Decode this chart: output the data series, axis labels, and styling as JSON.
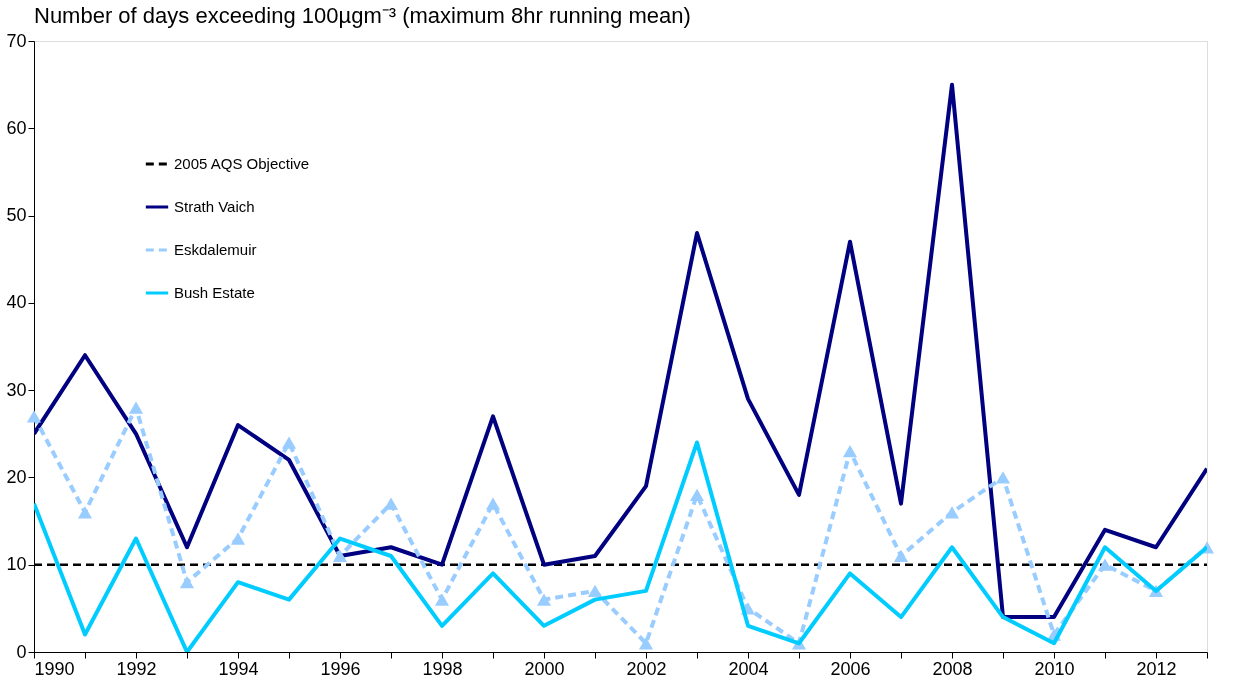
{
  "chart_data": {
    "type": "line",
    "title": "Number of days exceeding 100µgm⁻³ (maximum 8hr running mean)",
    "x": [
      1990,
      1991,
      1992,
      1993,
      1994,
      1995,
      1996,
      1997,
      1998,
      1999,
      2000,
      2001,
      2002,
      2003,
      2004,
      2005,
      2006,
      2007,
      2008,
      2009,
      2010,
      2011,
      2012,
      2013
    ],
    "series": [
      {
        "name": "Strath Vaich",
        "color": "#000080",
        "line_style": "solid",
        "marker": "none",
        "values": [
          25,
          34,
          25,
          12,
          26,
          22,
          11,
          12,
          10,
          27,
          10,
          11,
          19,
          48,
          29,
          18,
          47,
          17,
          65,
          4,
          4,
          14,
          12,
          21
        ]
      },
      {
        "name": "Eskdalemuir",
        "color": "#99ccff",
        "line_style": "dashed",
        "marker": "triangle",
        "values": [
          27,
          16,
          28,
          8,
          13,
          24,
          11,
          17,
          6,
          17,
          6,
          7,
          1,
          18,
          5,
          1,
          23,
          11,
          16,
          20,
          2,
          10,
          7,
          12
        ]
      },
      {
        "name": "Bush Estate",
        "color": "#00ccff",
        "line_style": "solid",
        "marker": "none",
        "values": [
          17,
          2,
          13,
          0,
          8,
          6,
          13,
          11,
          3,
          9,
          3,
          6,
          7,
          24,
          3,
          1,
          9,
          4,
          12,
          4,
          1,
          12,
          7,
          12
        ]
      }
    ],
    "ref_lines": [
      {
        "axis": "y",
        "value": 10,
        "label": "2005 AQS Objective",
        "color": "#000000",
        "line_style": "dashed"
      }
    ],
    "xlim": [
      1990,
      2013
    ],
    "xticks": [
      1990,
      {
        "value": 1991,
        "label": null
      },
      1992,
      {
        "value": 1993,
        "label": null
      },
      1994,
      {
        "value": 1995,
        "label": null
      },
      1996,
      {
        "value": 1997,
        "label": null
      },
      1998,
      {
        "value": 1999,
        "label": null
      },
      2000,
      {
        "value": 2001,
        "label": null
      },
      2002,
      {
        "value": 2003,
        "label": null
      },
      2004,
      {
        "value": 2005,
        "label": null
      },
      2006,
      {
        "value": 2007,
        "label": null
      },
      2008,
      {
        "value": 2009,
        "label": null
      },
      2010,
      {
        "value": 2011,
        "label": null
      },
      2012,
      {
        "value": 2013,
        "label": null
      }
    ],
    "ylim": [
      0,
      70
    ],
    "yticks": [
      0,
      10,
      20,
      30,
      40,
      50,
      60,
      70
    ],
    "grid": false,
    "legend": "top left"
  }
}
